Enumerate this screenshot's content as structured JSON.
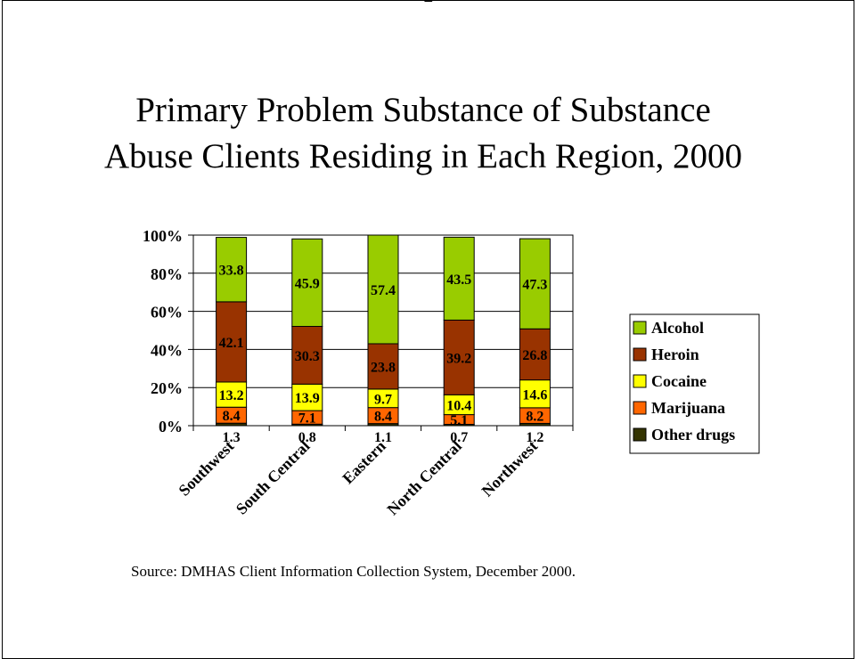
{
  "page": {
    "top_fragment": "g",
    "title_line1": "Primary Problem Substance of Substance",
    "title_line2": "Abuse Clients Residing in Each Region, 2000",
    "source": "Source: DMHAS Client Information Collection System, December 2000."
  },
  "chart_data": {
    "type": "bar",
    "stacked": true,
    "title": "Primary Problem Substance of Substance Abuse Clients Residing in Each Region, 2000",
    "xlabel": "",
    "ylabel": "",
    "ylim": [
      0,
      100
    ],
    "yticks": [
      "0%",
      "20%",
      "40%",
      "60%",
      "80%",
      "100%"
    ],
    "grid": true,
    "legend_position": "right",
    "categories": [
      "Southwest",
      "South Central",
      "Eastern",
      "North Central",
      "Northwest"
    ],
    "series": [
      {
        "name": "Other drugs",
        "color": "#333300",
        "values": [
          1.3,
          0.8,
          1.1,
          0.7,
          1.2
        ]
      },
      {
        "name": "Marijuana",
        "color": "#ff6600",
        "values": [
          8.4,
          7.1,
          8.4,
          5.1,
          8.2
        ]
      },
      {
        "name": "Cocaine",
        "color": "#ffff00",
        "values": [
          13.2,
          13.9,
          9.7,
          10.4,
          14.6
        ]
      },
      {
        "name": "Heroin",
        "color": "#993300",
        "values": [
          42.1,
          30.3,
          23.8,
          39.2,
          26.8
        ]
      },
      {
        "name": "Alcohol",
        "color": "#99cc00",
        "values": [
          33.8,
          45.9,
          57.4,
          43.5,
          47.3
        ]
      }
    ],
    "legend_order": [
      "Alcohol",
      "Heroin",
      "Cocaine",
      "Marijuana",
      "Other drugs"
    ]
  }
}
